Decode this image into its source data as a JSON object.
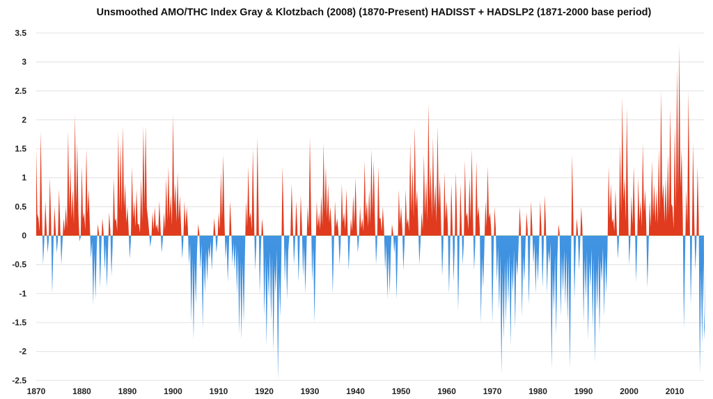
{
  "chart_data": {
    "type": "area",
    "title": "Unsmoothed AMO/THC Index Gray & Klotzbach (2008) (1870-Present) HADISST + HADSLP2 (1871-2000 base period)",
    "xlabel": "",
    "ylabel": "",
    "xlim": [
      1870,
      2016.4
    ],
    "ylim": [
      -2.5,
      3.5
    ],
    "grid": true,
    "x_ticks": [
      "1870",
      "1880",
      "1890",
      "1900",
      "1910",
      "1920",
      "1930",
      "1940",
      "1950",
      "1960",
      "1970",
      "1980",
      "1990",
      "2000",
      "2010"
    ],
    "y_ticks": [
      "3.5",
      "3",
      "2.5",
      "2",
      "1.5",
      "1",
      "0.5",
      "0",
      "-0.5",
      "-1",
      "-1.5",
      "-2",
      "-2.5"
    ],
    "start_year": 1870,
    "samples_per_year": 2,
    "positive_color": "#e03b1f",
    "negative_color": "#4a9de9",
    "values": [
      1.5,
      0.3,
      1.8,
      -0.5,
      0.6,
      -0.3,
      1.0,
      -1.0,
      0.5,
      -0.3,
      0.8,
      -0.5,
      0.3,
      0.5,
      1.8,
      1.2,
      0.8,
      2.1,
      1.6,
      -0.1,
      1.2,
      0.4,
      1.5,
      0.8,
      -0.4,
      -1.2,
      -1.1,
      0.2,
      -0.9,
      0.3,
      -0.6,
      -0.9,
      0.4,
      -0.7,
      1.0,
      0.3,
      1.8,
      1.6,
      1.9,
      0.9,
      0.5,
      -0.4,
      1.2,
      0.6,
      0.8,
      0.2,
      1.0,
      1.9,
      1.9,
      0.3,
      -0.2,
      0.4,
      0.5,
      0.2,
      0.6,
      -0.3,
      0.4,
      1.0,
      1.2,
      0.7,
      2.1,
      0.9,
      1.1,
      0.7,
      -0.4,
      0.6,
      0.5,
      -0.5,
      -1.5,
      -1.8,
      -1.2,
      0.2,
      -0.6,
      -1.6,
      -1.0,
      -0.8,
      -0.4,
      -0.6,
      0.3,
      -0.3,
      0.4,
      1.1,
      1.4,
      -0.4,
      -0.8,
      0.6,
      -0.5,
      -0.6,
      -1.0,
      -1.7,
      -1.8,
      -1.5,
      0.6,
      1.2,
      0.4,
      1.5,
      -0.6,
      1.7,
      -1.0,
      0.3,
      -1.4,
      -1.9,
      -1.1,
      -1.5,
      -2.0,
      -1.0,
      -2.5,
      -1.4,
      1.2,
      -0.8,
      -1.1,
      0.0,
      0.9,
      -0.5,
      0.6,
      -0.8,
      0.7,
      -0.7,
      -1.0,
      0.5,
      1.7,
      -0.8,
      -1.5,
      0.6,
      0.4,
      0.7,
      1.6,
      1.2,
      0.9,
      0.5,
      -1.0,
      0.6,
      0.3,
      -0.5,
      0.9,
      0.4,
      0.8,
      -0.6,
      0.3,
      0.7,
      1.0,
      -0.3,
      0.5,
      0.3,
      1.3,
      0.6,
      0.8,
      1.5,
      1.3,
      -0.5,
      1.2,
      0.3,
      0.5,
      -0.6,
      -1.1,
      -1.0,
      0.2,
      -0.3,
      -1.1,
      0.8,
      0.5,
      -0.6,
      0.8,
      0.3,
      1.6,
      1.2,
      1.9,
      0.8,
      -0.5,
      0.4,
      1.4,
      1.0,
      2.3,
      1.2,
      1.7,
      0.9,
      1.9,
      1.0,
      -0.7,
      1.1,
      0.6,
      -1.0,
      0.9,
      -0.8,
      1.1,
      -1.3,
      0.9,
      -0.5,
      1.3,
      0.4,
      1.0,
      1.5,
      -0.6,
      1.3,
      0.5,
      -1.5,
      -0.9,
      0.6,
      1.2,
      0.4,
      -1.5,
      0.5,
      -0.8,
      -1.3,
      -2.4,
      -1.8,
      -1.5,
      -1.2,
      -1.9,
      -1.0,
      -1.6,
      -0.7,
      0.5,
      -1.4,
      -0.8,
      0.4,
      -1.2,
      0.6,
      -0.5,
      -1.0,
      -0.8,
      0.6,
      -0.9,
      0.7,
      -1.0,
      -0.5,
      -2.3,
      -1.3,
      -1.7,
      0.2,
      -1.4,
      -1.0,
      -1.2,
      -1.5,
      -2.3,
      1.4,
      -1.1,
      0.3,
      -0.6,
      0.5,
      -1.5,
      -1.1,
      -1.8,
      -0.9,
      -1.6,
      -2.2,
      -1.3,
      -1.7,
      -0.8,
      -1.4,
      -1.0,
      1.2,
      0.9,
      0.3,
      0.8,
      -0.4,
      1.6,
      2.4,
      1.0,
      2.2,
      -0.5,
      0.7,
      1.2,
      -0.8,
      1.0,
      0.6,
      1.6,
      0.8,
      -0.9,
      0.6,
      1.3,
      0.9,
      0.8,
      1.5,
      2.5,
      0.9,
      1.0,
      1.4,
      2.2,
      0.5,
      1.9,
      2.9,
      3.3,
      1.5,
      -1.6,
      0.8,
      2.5,
      -1.2,
      1.6,
      -0.6,
      1.2,
      -2.4,
      -1.9,
      -1.8
    ]
  }
}
